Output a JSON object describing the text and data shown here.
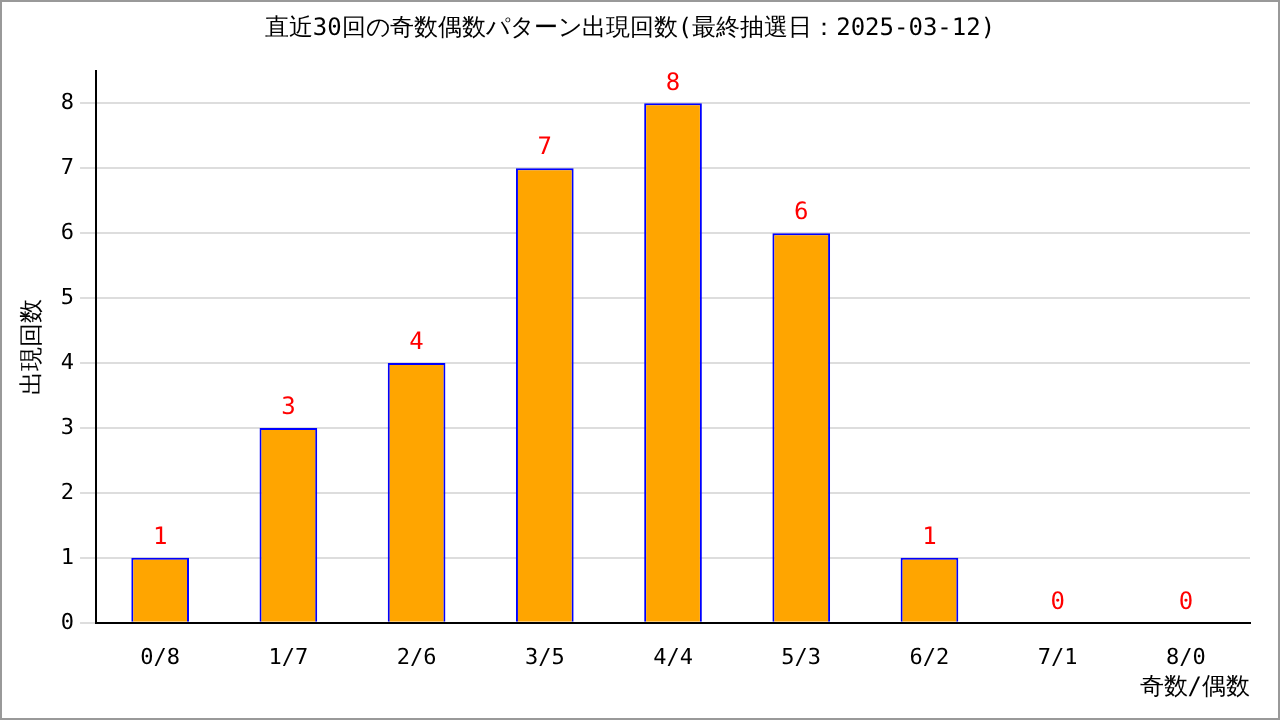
{
  "chart_data": {
    "type": "bar",
    "title": "直近30回の奇数偶数パターン出現回数(最終抽選日：2025-03-12)",
    "xlabel": "奇数/偶数",
    "ylabel": "出現回数",
    "categories": [
      "0/8",
      "1/7",
      "2/6",
      "3/5",
      "4/4",
      "5/3",
      "6/2",
      "7/1",
      "8/0"
    ],
    "values": [
      1,
      3,
      4,
      7,
      8,
      6,
      1,
      0,
      0
    ],
    "color": "#ffa500",
    "ylim": [
      0,
      8.5
    ],
    "yticks": [
      0,
      1,
      2,
      3,
      4,
      5,
      6,
      7,
      8
    ],
    "grid": "y",
    "data_labels": true,
    "legend": false
  }
}
